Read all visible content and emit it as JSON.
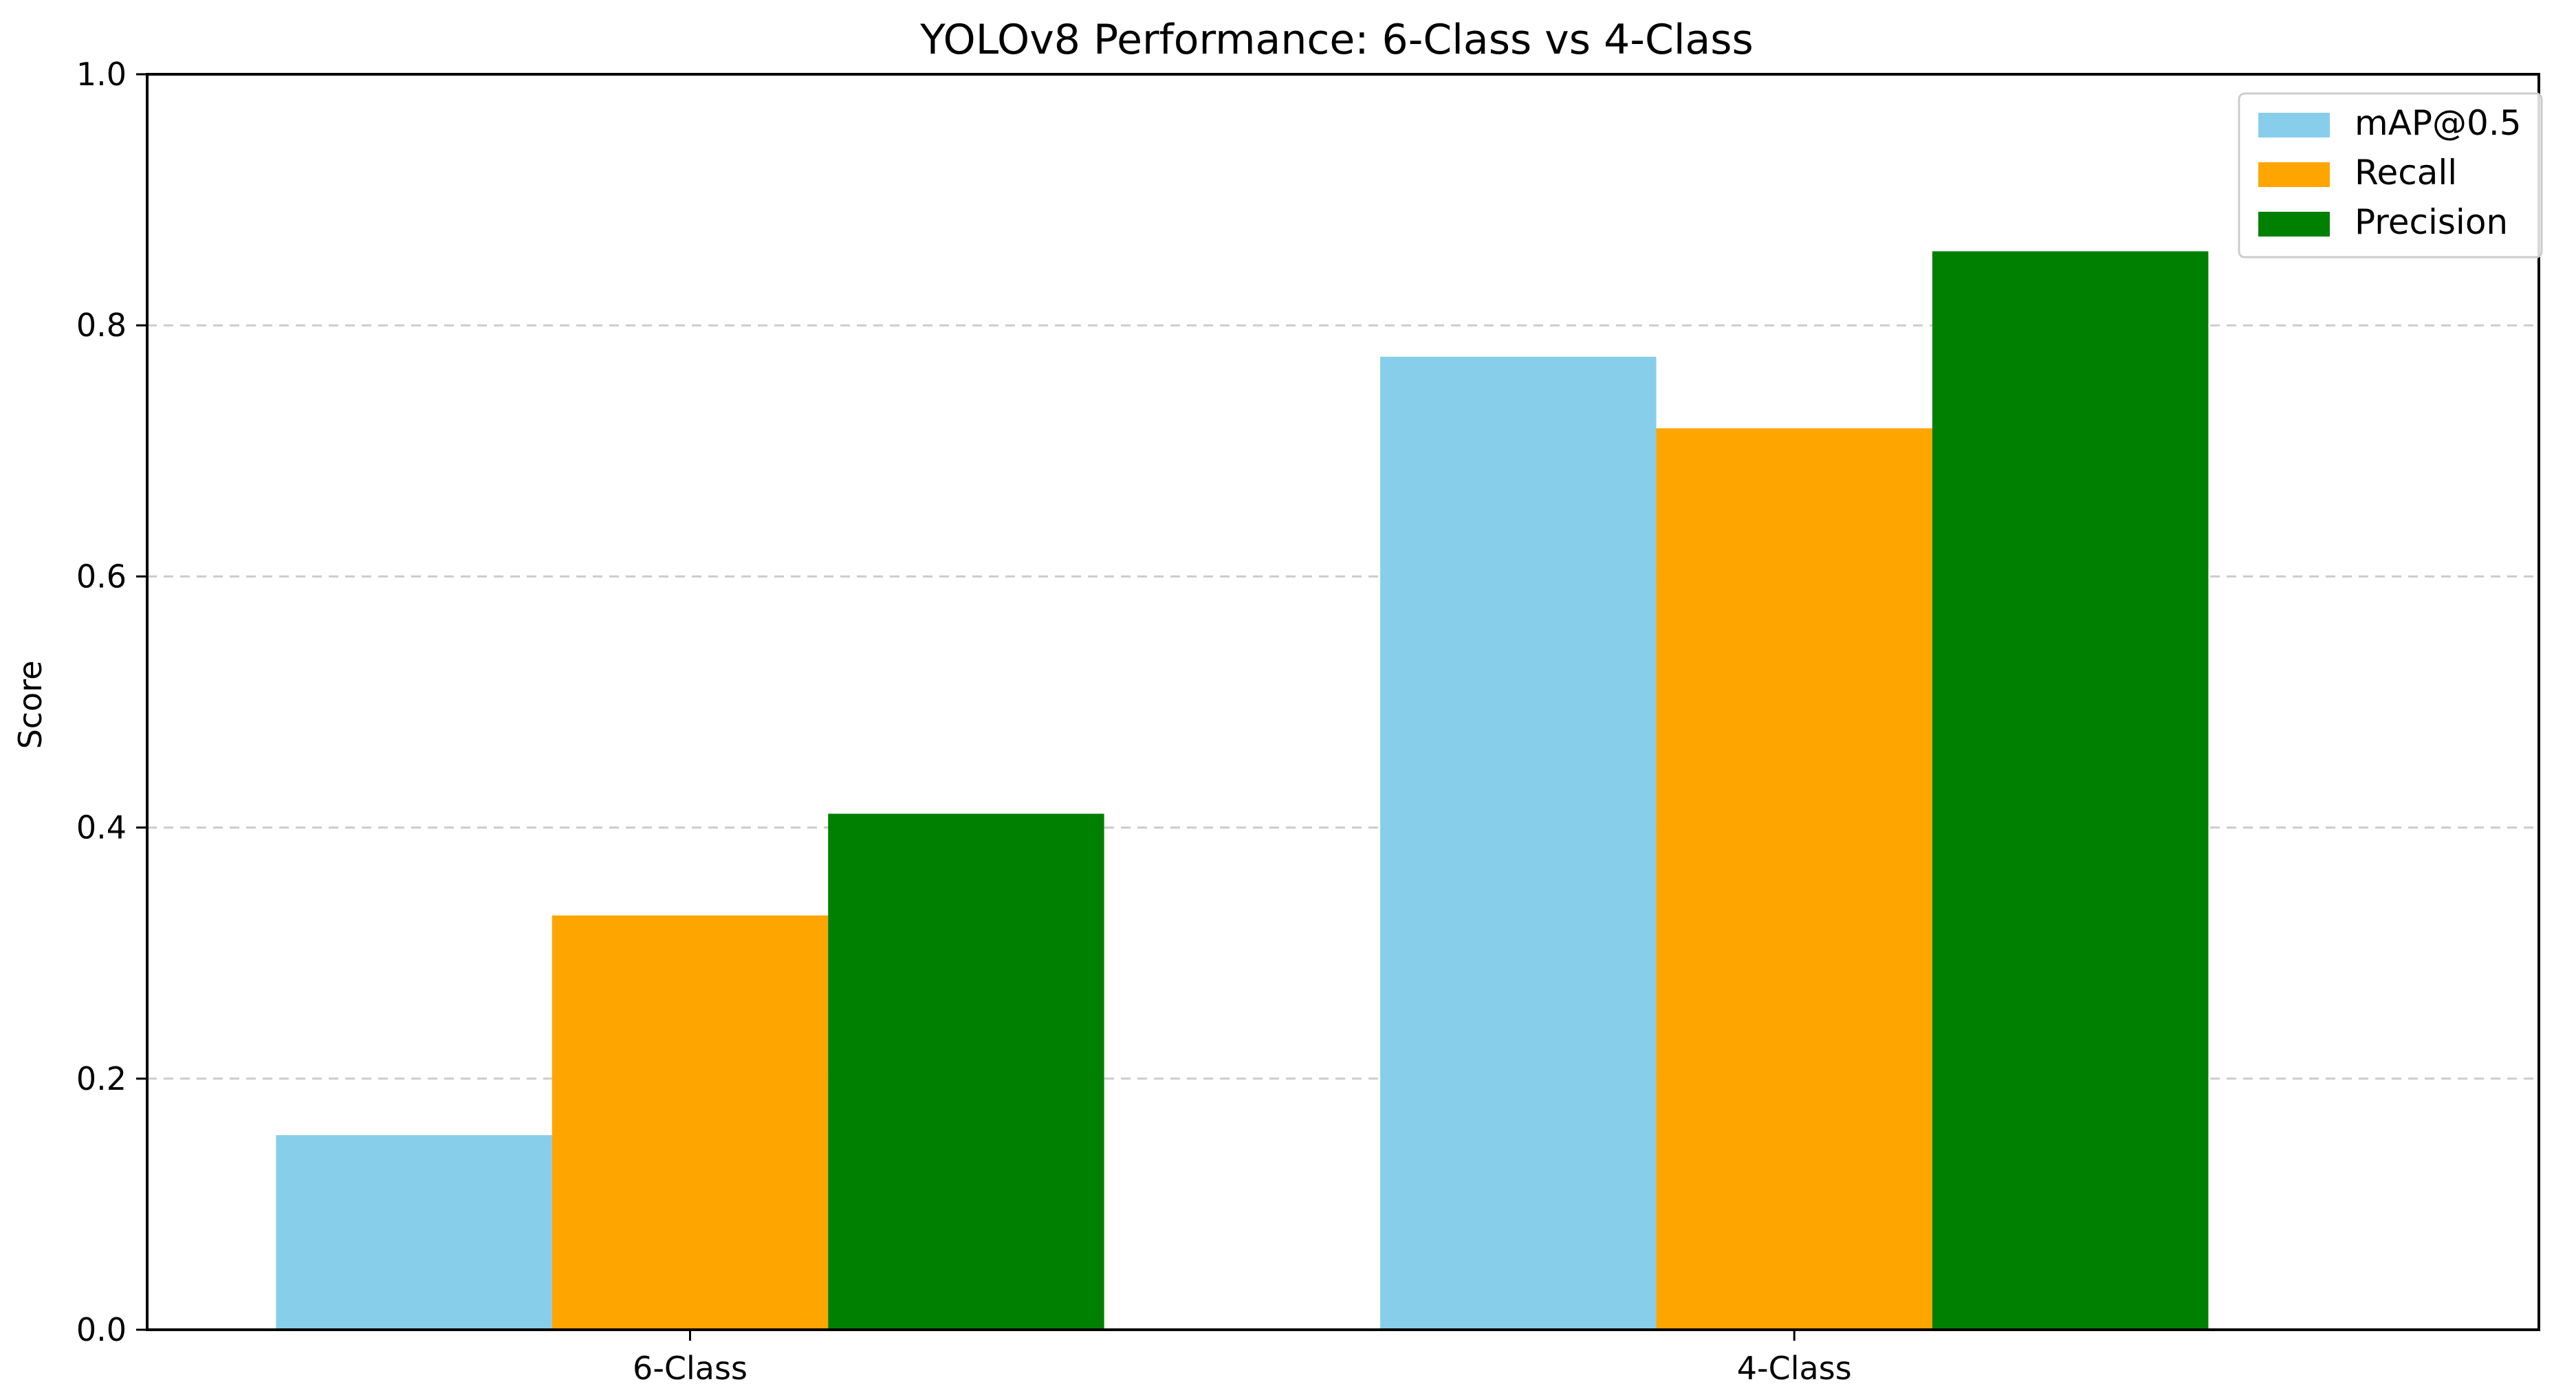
{
  "chart_data": {
    "type": "bar",
    "title": "YOLOv8 Performance: 6-Class vs 4-Class",
    "xlabel": "",
    "ylabel": "Score",
    "categories": [
      "6-Class",
      "4-Class"
    ],
    "series": [
      {
        "name": "mAP@0.5",
        "color": "#87CEEB",
        "values": [
          0.155,
          0.775
        ]
      },
      {
        "name": "Recall",
        "color": "#FFA500",
        "values": [
          0.33,
          0.718
        ]
      },
      {
        "name": "Precision",
        "color": "#008000",
        "values": [
          0.411,
          0.859
        ]
      }
    ],
    "ylim": [
      0,
      1.0
    ],
    "yticks": [
      "0.0",
      "0.2",
      "0.4",
      "0.6",
      "0.8",
      "1.0"
    ],
    "grid": "y-dashed",
    "legend_position": "top-right"
  }
}
